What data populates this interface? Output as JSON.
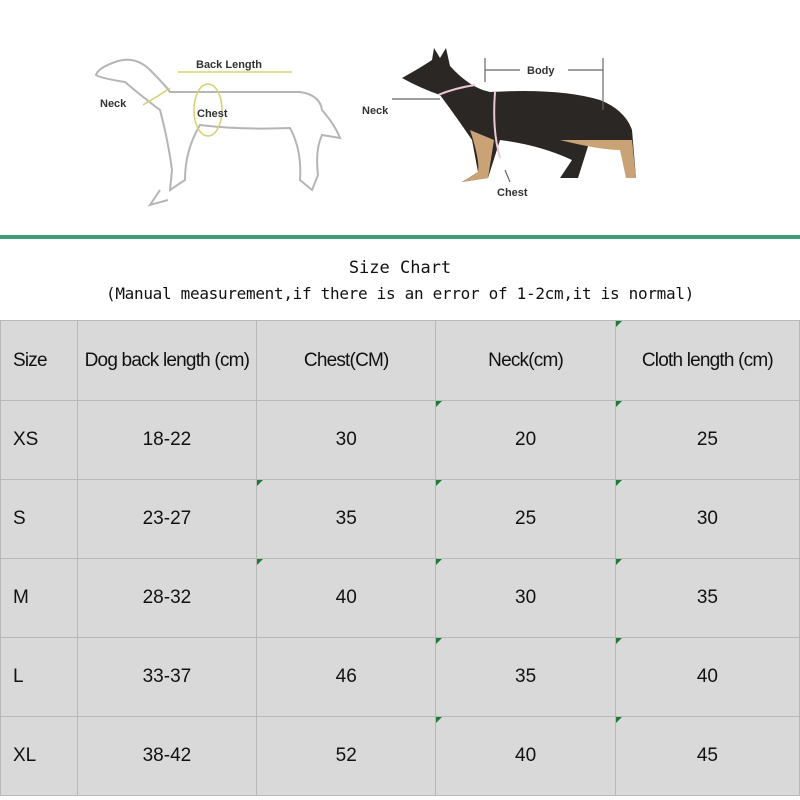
{
  "illustration": {
    "outline_dog": {
      "back_length_label": "Back Length",
      "neck_label": "Neck",
      "chest_label": "Chest"
    },
    "photo_dog": {
      "body_label": "Body",
      "neck_label": "Neck",
      "chest_label": "Chest"
    }
  },
  "accent_color": "#3f9e76",
  "title": "Size Chart",
  "subtitle": "(Manual measurement,if there is an error of 1-2cm,it is normal)",
  "table": {
    "headers": [
      "Size",
      "Dog back length (cm)",
      "Chest(CM)",
      "Neck(cm)",
      "Cloth length (cm)"
    ],
    "rows": [
      [
        "XS",
        "18-22",
        "30",
        "20",
        "25"
      ],
      [
        "S",
        "23-27",
        "35",
        "25",
        "30"
      ],
      [
        "M",
        "28-32",
        "40",
        "30",
        "35"
      ],
      [
        "L",
        "33-37",
        "46",
        "35",
        "40"
      ],
      [
        "XL",
        "38-42",
        "52",
        "40",
        "45"
      ]
    ]
  }
}
